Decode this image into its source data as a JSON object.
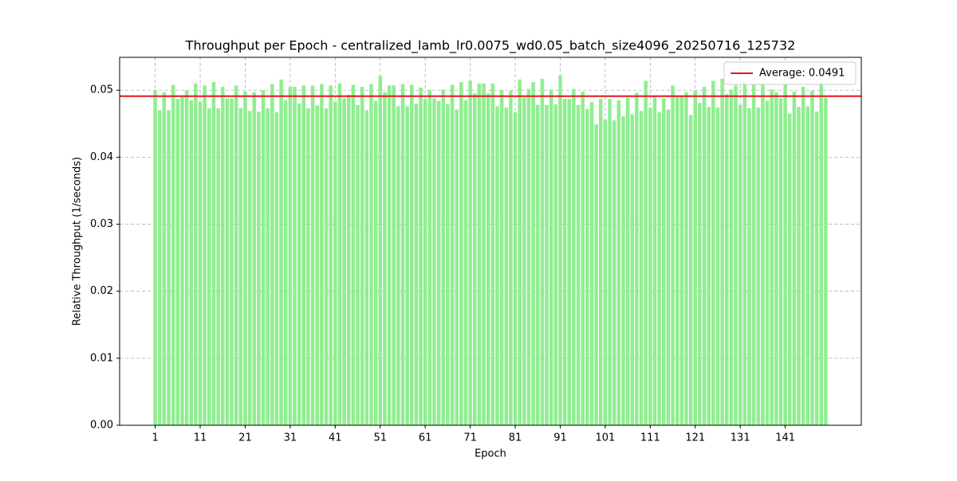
{
  "chart_data": {
    "type": "bar",
    "title": "Throughput per Epoch - centralized_lamb_lr0.0075_wd0.05_batch_size4096_20250716_125732",
    "xlabel": "Epoch",
    "ylabel": "Relative Throughput (1/seconds)",
    "x": [
      1,
      2,
      3,
      4,
      5,
      6,
      7,
      8,
      9,
      10,
      11,
      12,
      13,
      14,
      15,
      16,
      17,
      18,
      19,
      20,
      21,
      22,
      23,
      24,
      25,
      26,
      27,
      28,
      29,
      30,
      31,
      32,
      33,
      34,
      35,
      36,
      37,
      38,
      39,
      40,
      41,
      42,
      43,
      44,
      45,
      46,
      47,
      48,
      49,
      50,
      51,
      52,
      53,
      54,
      55,
      56,
      57,
      58,
      59,
      60,
      61,
      62,
      63,
      64,
      65,
      66,
      67,
      68,
      69,
      70,
      71,
      72,
      73,
      74,
      75,
      76,
      77,
      78,
      79,
      80,
      81,
      82,
      83,
      84,
      85,
      86,
      87,
      88,
      89,
      90,
      91,
      92,
      93,
      94,
      95,
      96,
      97,
      98,
      99,
      100,
      101,
      102,
      103,
      104,
      105,
      106,
      107,
      108,
      109,
      110,
      111,
      112,
      113,
      114,
      115,
      116,
      117,
      118,
      119,
      120,
      121,
      122,
      123,
      124,
      125,
      126,
      127,
      128,
      129,
      130,
      131,
      132,
      133,
      134,
      135,
      136,
      137,
      138,
      139,
      140,
      141,
      142,
      143,
      144,
      145,
      146,
      147,
      148,
      149,
      150
    ],
    "values": [
      0.05,
      0.047,
      0.0497,
      0.047,
      0.0508,
      0.0487,
      0.049,
      0.05,
      0.0485,
      0.051,
      0.0483,
      0.0507,
      0.0473,
      0.0512,
      0.0473,
      0.0505,
      0.0488,
      0.0488,
      0.0507,
      0.0473,
      0.0498,
      0.0469,
      0.0497,
      0.0468,
      0.05,
      0.0473,
      0.0509,
      0.0467,
      0.0516,
      0.0485,
      0.0505,
      0.0505,
      0.048,
      0.0507,
      0.0473,
      0.0507,
      0.0477,
      0.0509,
      0.0473,
      0.0507,
      0.0483,
      0.051,
      0.0488,
      0.0493,
      0.0508,
      0.0478,
      0.0505,
      0.047,
      0.0509,
      0.0484,
      0.0521,
      0.0497,
      0.0507,
      0.0507,
      0.0476,
      0.0509,
      0.0476,
      0.0508,
      0.048,
      0.0504,
      0.0487,
      0.05,
      0.0488,
      0.0484,
      0.0501,
      0.0479,
      0.0508,
      0.0471,
      0.0512,
      0.0485,
      0.0514,
      0.0495,
      0.051,
      0.051,
      0.0495,
      0.051,
      0.0476,
      0.05,
      0.0474,
      0.0499,
      0.0467,
      0.0516,
      0.0489,
      0.0502,
      0.0512,
      0.0478,
      0.0517,
      0.0478,
      0.0501,
      0.0479,
      0.0522,
      0.0487,
      0.0487,
      0.0502,
      0.0478,
      0.0498,
      0.0472,
      0.0482,
      0.0449,
      0.0487,
      0.0456,
      0.0487,
      0.0455,
      0.0485,
      0.0461,
      0.0489,
      0.0464,
      0.0496,
      0.0469,
      0.0514,
      0.0474,
      0.049,
      0.0467,
      0.0488,
      0.0471,
      0.0507,
      0.049,
      0.049,
      0.0497,
      0.0463,
      0.0499,
      0.0481,
      0.0505,
      0.0475,
      0.0514,
      0.0474,
      0.0517,
      0.0494,
      0.0501,
      0.0507,
      0.0478,
      0.0512,
      0.0473,
      0.0508,
      0.0474,
      0.0508,
      0.0484,
      0.0501,
      0.0497,
      0.0488,
      0.0509,
      0.0465,
      0.0498,
      0.0475,
      0.0505,
      0.0476,
      0.0499,
      0.0468,
      0.0512,
      0.0489
    ],
    "color": "#90ee90",
    "average": {
      "name": "Average: 0.0491",
      "value": 0.0491,
      "color": "#e8141b"
    },
    "xlim": [
      -6.9,
      157.9
    ],
    "xticks": [
      1,
      11,
      21,
      31,
      41,
      51,
      61,
      71,
      81,
      91,
      101,
      111,
      121,
      131,
      141
    ],
    "ylim": [
      0,
      0.0549
    ],
    "yticks": [
      {
        "value": 0,
        "label": "0.00"
      },
      {
        "value": 0.01,
        "label": "0.01"
      },
      {
        "value": 0.02,
        "label": "0.02"
      },
      {
        "value": 0.03,
        "label": "0.03"
      },
      {
        "value": 0.04,
        "label": "0.04"
      },
      {
        "value": 0.05,
        "label": "0.05"
      }
    ],
    "grid": true,
    "legend": "upper right"
  }
}
